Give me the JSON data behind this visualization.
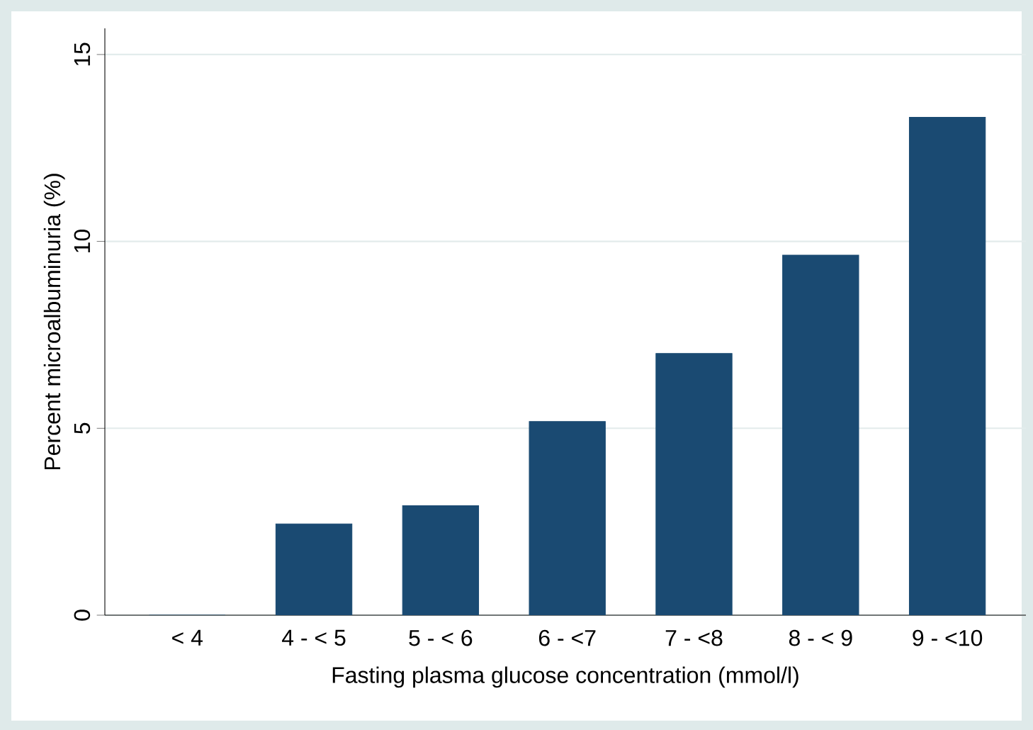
{
  "chart_data": {
    "type": "bar",
    "xlabel": "Fasting plasma glucose concentration  (mmol/l)",
    "ylabel": "Percent microalbuminuria (%)",
    "categories": [
      "< 4",
      "4 - < 5",
      "5 - < 6",
      "6 - <7",
      "7 - <8",
      "8 - < 9",
      "9 - <10"
    ],
    "values": [
      0,
      2.44,
      2.93,
      5.18,
      7.0,
      9.63,
      13.32
    ],
    "color": "#1a4a72",
    "ylim": [
      0,
      15.7
    ],
    "yticks": [
      0,
      5,
      10,
      15
    ],
    "grid": "y"
  }
}
